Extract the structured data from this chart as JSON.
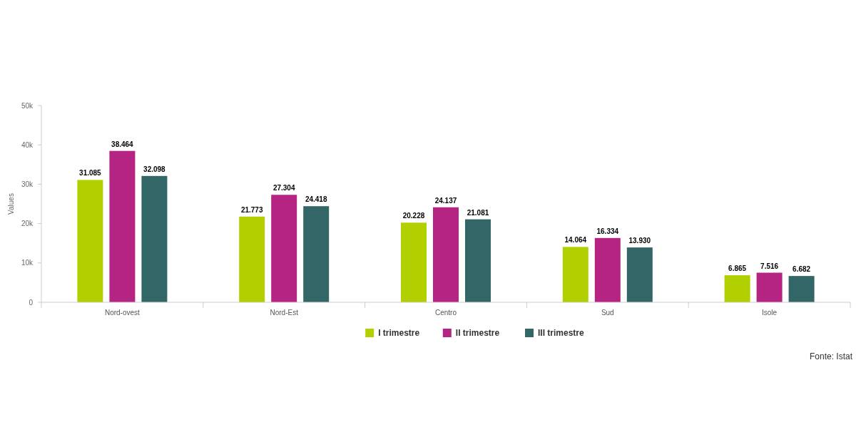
{
  "chart_data": {
    "type": "bar",
    "ylabel": "Values",
    "categories": [
      "Nord-ovest",
      "Nord-Est",
      "Centro",
      "Sud",
      "Isole"
    ],
    "series": [
      {
        "name": "I trimestre",
        "color": "#b2d000",
        "values": [
          31085,
          21773,
          20228,
          14064,
          6865
        ],
        "value_labels": [
          "31.085",
          "21.773",
          "20.228",
          "14.064",
          "6.865"
        ]
      },
      {
        "name": "II trimestre",
        "color": "#b52383",
        "values": [
          38464,
          27304,
          24137,
          16334,
          7516
        ],
        "value_labels": [
          "38.464",
          "27.304",
          "24.137",
          "16.334",
          "7.516"
        ]
      },
      {
        "name": "III trimestre",
        "color": "#336666",
        "values": [
          32098,
          24418,
          21081,
          13930,
          6682
        ],
        "value_labels": [
          "32.098",
          "24.418",
          "21.081",
          "13.930",
          "6.682"
        ]
      }
    ],
    "ylim": [
      0,
      50000
    ],
    "yticks": [
      0,
      {
        "value": 10000,
        "label": "10k"
      },
      {
        "value": 20000,
        "label": "20k"
      },
      {
        "value": 30000,
        "label": "30k"
      },
      {
        "value": 40000,
        "label": "40k"
      },
      {
        "value": 50000,
        "label": "50k"
      }
    ],
    "grid": false,
    "legend": "bottom",
    "annotations": [
      "Fonte: Istat"
    ]
  }
}
